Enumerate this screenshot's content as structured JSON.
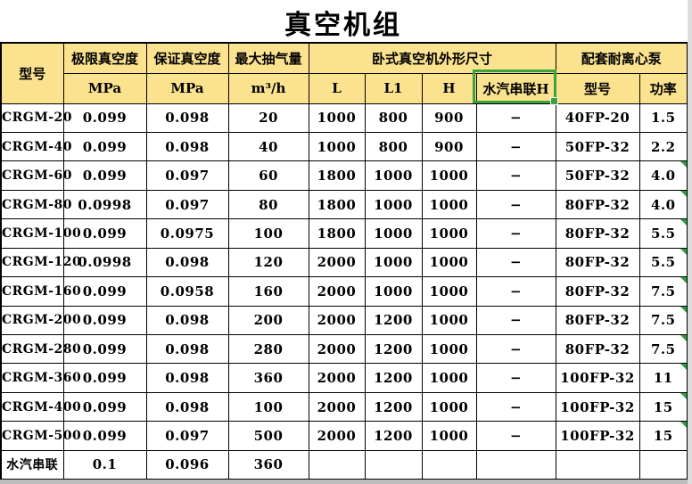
{
  "title": "真空机组",
  "colors": {
    "header_bg": "#FAE28F",
    "selection_green": "#3CA23C",
    "flag_green": "#2F9E41",
    "grid_black": "#000000",
    "outside_right": "#DCDCDC",
    "outside_bottom": "#BDBDBD"
  },
  "header": {
    "col_model": "型号",
    "col_ultimate_vacuum": "极限真空度",
    "col_guaranteed_vacuum": "保证真空度",
    "col_max_capacity": "最大抽气量",
    "group_dimensions": "卧式真空机外形尺寸",
    "group_pump": "配套耐离心泵",
    "unit_mpa_1": "MPa",
    "unit_mpa_2": "MPa",
    "unit_m3h": "m³/h",
    "sub_l": "L",
    "sub_l1": "L1",
    "sub_h": "H",
    "sub_steam_series_h": "水汽串联H",
    "sub_pump_model": "型号",
    "sub_pump_power": "功率"
  },
  "rows": [
    {
      "model": "CRGM-20",
      "ultimate": "0.099",
      "guaranteed": "0.098",
      "max_capacity": "20",
      "l": "1000",
      "l1": "800",
      "h": "900",
      "steam_h": "−",
      "pump_model": "40FP-20",
      "power": "1.5",
      "error_flag": false
    },
    {
      "model": "CRGM-40",
      "ultimate": "0.099",
      "guaranteed": "0.098",
      "max_capacity": "40",
      "l": "1000",
      "l1": "800",
      "h": "900",
      "steam_h": "−",
      "pump_model": "50FP-32",
      "power": "2.2",
      "error_flag": false
    },
    {
      "model": "CRGM-60",
      "ultimate": "0.099",
      "guaranteed": "0.097",
      "max_capacity": "60",
      "l": "1800",
      "l1": "1000",
      "h": "1000",
      "steam_h": "−",
      "pump_model": "50FP-32",
      "power": "4.0",
      "error_flag": true
    },
    {
      "model": "CRGM-80",
      "ultimate": "0.0998",
      "guaranteed": "0.097",
      "max_capacity": "80",
      "l": "1800",
      "l1": "1000",
      "h": "1000",
      "steam_h": "−",
      "pump_model": "80FP-32",
      "power": "4.0",
      "error_flag": true
    },
    {
      "model": "CRGM-100",
      "ultimate": "0.099",
      "guaranteed": "0.0975",
      "max_capacity": "100",
      "l": "1800",
      "l1": "1000",
      "h": "1000",
      "steam_h": "−",
      "pump_model": "80FP-32",
      "power": "5.5",
      "error_flag": true
    },
    {
      "model": "CRGM-120",
      "ultimate": "0.0998",
      "guaranteed": "0.098",
      "max_capacity": "120",
      "l": "2000",
      "l1": "1000",
      "h": "1000",
      "steam_h": "−",
      "pump_model": "80FP-32",
      "power": "5.5",
      "error_flag": true
    },
    {
      "model": "CRGM-160",
      "ultimate": "0.099",
      "guaranteed": "0.0958",
      "max_capacity": "160",
      "l": "2000",
      "l1": "1000",
      "h": "1000",
      "steam_h": "−",
      "pump_model": "80FP-32",
      "power": "7.5",
      "error_flag": true
    },
    {
      "model": "CRGM-200",
      "ultimate": "0.099",
      "guaranteed": "0.098",
      "max_capacity": "200",
      "l": "2000",
      "l1": "1200",
      "h": "1000",
      "steam_h": "−",
      "pump_model": "80FP-32",
      "power": "7.5",
      "error_flag": true
    },
    {
      "model": "CRGM-280",
      "ultimate": "0.099",
      "guaranteed": "0.098",
      "max_capacity": "280",
      "l": "2000",
      "l1": "1200",
      "h": "1000",
      "steam_h": "−",
      "pump_model": "80FP-32",
      "power": "7.5",
      "error_flag": true
    },
    {
      "model": "CRGM-360",
      "ultimate": "0.099",
      "guaranteed": "0.098",
      "max_capacity": "360",
      "l": "2000",
      "l1": "1200",
      "h": "1000",
      "steam_h": "−",
      "pump_model": "100FP-32",
      "power": "11",
      "error_flag": true
    },
    {
      "model": "CRGM-400",
      "ultimate": "0.099",
      "guaranteed": "0.098",
      "max_capacity": "100",
      "l": "2000",
      "l1": "1200",
      "h": "1000",
      "steam_h": "−",
      "pump_model": "100FP-32",
      "power": "15",
      "error_flag": true
    },
    {
      "model": "CRGM-500",
      "ultimate": "0.099",
      "guaranteed": "0.097",
      "max_capacity": "500",
      "l": "2000",
      "l1": "1200",
      "h": "1000",
      "steam_h": "−",
      "pump_model": "100FP-32",
      "power": "15",
      "error_flag": true
    },
    {
      "model": "水汽串联",
      "ultimate": "0.1",
      "guaranteed": "0.096",
      "max_capacity": "360",
      "l": "",
      "l1": "",
      "h": "",
      "steam_h": "",
      "pump_model": "",
      "power": "",
      "error_flag": false
    }
  ]
}
